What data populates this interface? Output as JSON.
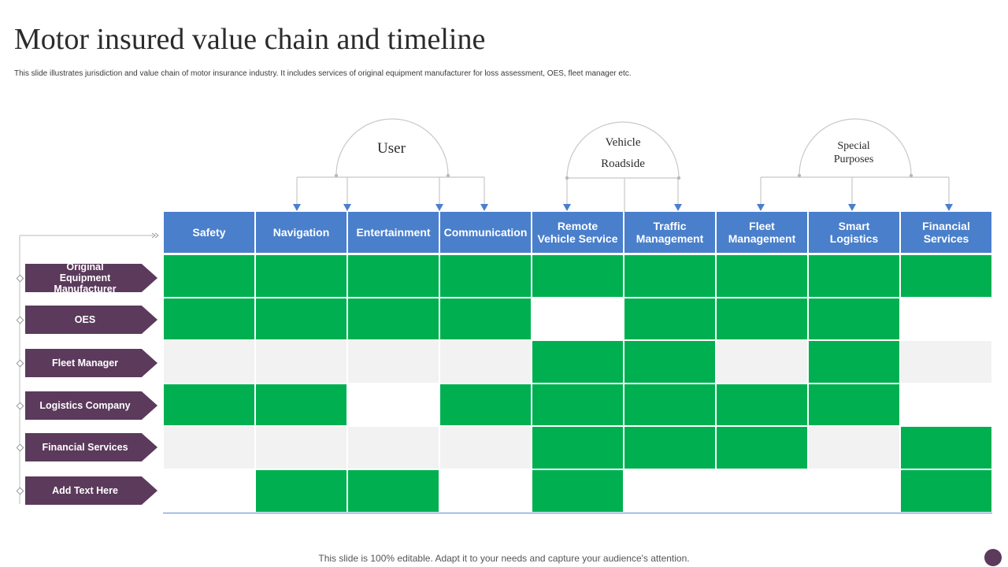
{
  "title": "Motor insured value chain and timeline",
  "subtitle": "This slide illustrates jurisdiction and value chain of motor insurance industry. It includes services of original equipment manufacturer for loss assessment, OES, fleet manager etc.",
  "groups": [
    {
      "lines": [
        "User"
      ]
    },
    {
      "lines": [
        "Vehicle",
        "Roadside"
      ]
    },
    {
      "lines": [
        "Special",
        "Purposes"
      ]
    }
  ],
  "columns": [
    {
      "lines": [
        "Safety"
      ]
    },
    {
      "lines": [
        "Navigation"
      ]
    },
    {
      "lines": [
        "Entertainment"
      ]
    },
    {
      "lines": [
        "Communication"
      ]
    },
    {
      "lines": [
        "Remote",
        "Vehicle Service"
      ]
    },
    {
      "lines": [
        "Traffic",
        "Management"
      ]
    },
    {
      "lines": [
        "Fleet",
        "Management"
      ]
    },
    {
      "lines": [
        "Smart",
        "Logistics"
      ]
    },
    {
      "lines": [
        "Financial",
        "Services"
      ]
    }
  ],
  "rows": [
    {
      "lines": [
        "Original",
        "Equipment Manufacturer"
      ],
      "cells": [
        1,
        1,
        1,
        1,
        1,
        1,
        1,
        1,
        1
      ]
    },
    {
      "lines": [
        "OES"
      ],
      "cells": [
        1,
        1,
        1,
        1,
        0,
        1,
        1,
        1,
        0
      ]
    },
    {
      "lines": [
        "Fleet Manager"
      ],
      "cells": [
        0,
        0,
        0,
        0,
        1,
        1,
        0,
        1,
        0
      ]
    },
    {
      "lines": [
        "Logistics Company"
      ],
      "cells": [
        1,
        1,
        0,
        1,
        1,
        1,
        1,
        1,
        0
      ]
    },
    {
      "lines": [
        "Financial Services"
      ],
      "cells": [
        0,
        0,
        0,
        0,
        1,
        1,
        1,
        0,
        1
      ]
    },
    {
      "lines": [
        "Add Text Here"
      ],
      "cells": [
        0,
        1,
        1,
        0,
        1,
        0,
        0,
        0,
        1
      ]
    }
  ],
  "colors": {
    "header": "#4a7fcb",
    "active": "#00b050",
    "inactive_shaded": "#f2f2f2",
    "inactive_plain": "#ffffff",
    "row_label": "#5b3a5c",
    "connector": "#c8c8c8",
    "arrow": "#4a7fcb"
  },
  "footer": "This slide is 100% editable. Adapt it to your needs and capture your audience's attention."
}
